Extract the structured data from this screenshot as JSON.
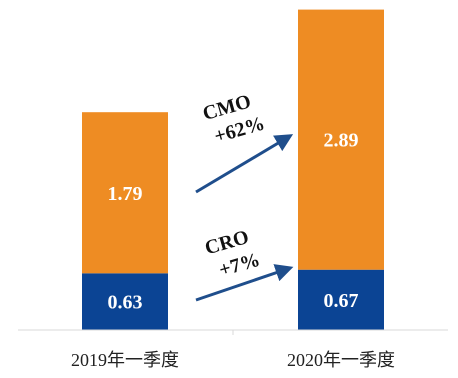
{
  "chart_data": {
    "type": "bar",
    "stacked": true,
    "categories": [
      "2019年一季度",
      "2020年一季度"
    ],
    "series": [
      {
        "name": "CRO",
        "values": [
          0.63,
          0.67
        ],
        "color": "#0B4494"
      },
      {
        "name": "CMO",
        "values": [
          1.79,
          2.89
        ],
        "color": "#EE8C23"
      }
    ],
    "ylim": [
      0,
      3.6
    ],
    "grid": false,
    "legend": "none",
    "value_labels": {
      "CRO": [
        "0.63",
        "0.67"
      ],
      "CMO": [
        "1.79",
        "2.89"
      ]
    },
    "annotations": [
      {
        "series": "CMO",
        "name": "CMO",
        "change": "+62%"
      },
      {
        "series": "CRO",
        "name": "CRO",
        "change": "+7%"
      }
    ],
    "arrow_color": "#1F4E8C",
    "label_color": "#ffffff"
  }
}
